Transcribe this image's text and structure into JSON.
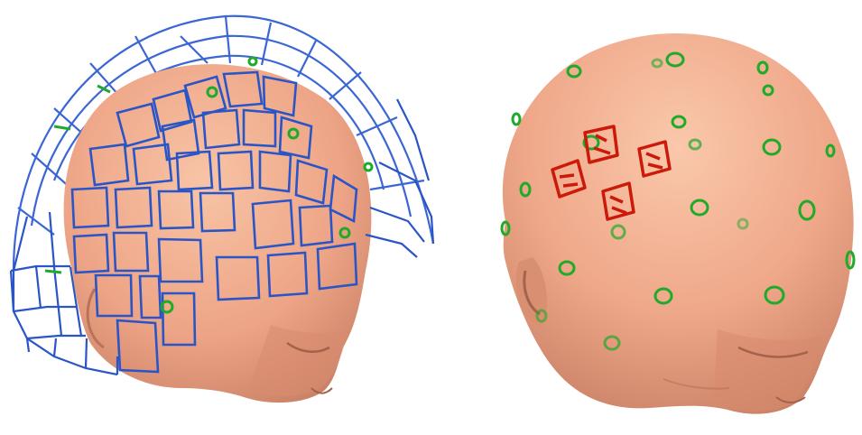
{
  "scene": {
    "panels": [
      {
        "id": "helmet-view",
        "content": "head-with-sensor-helmet"
      },
      {
        "id": "head-view",
        "content": "head-with-electrode-markers"
      }
    ]
  },
  "colors": {
    "background": "#ffffff",
    "skin": "#f0a88a",
    "skin_shade": "#c77f64",
    "helmet": "#2a55c6",
    "helmet_light": "#5c80e0",
    "electrode_green": "#1faa2a",
    "coil_red": "#cc1a0a"
  }
}
